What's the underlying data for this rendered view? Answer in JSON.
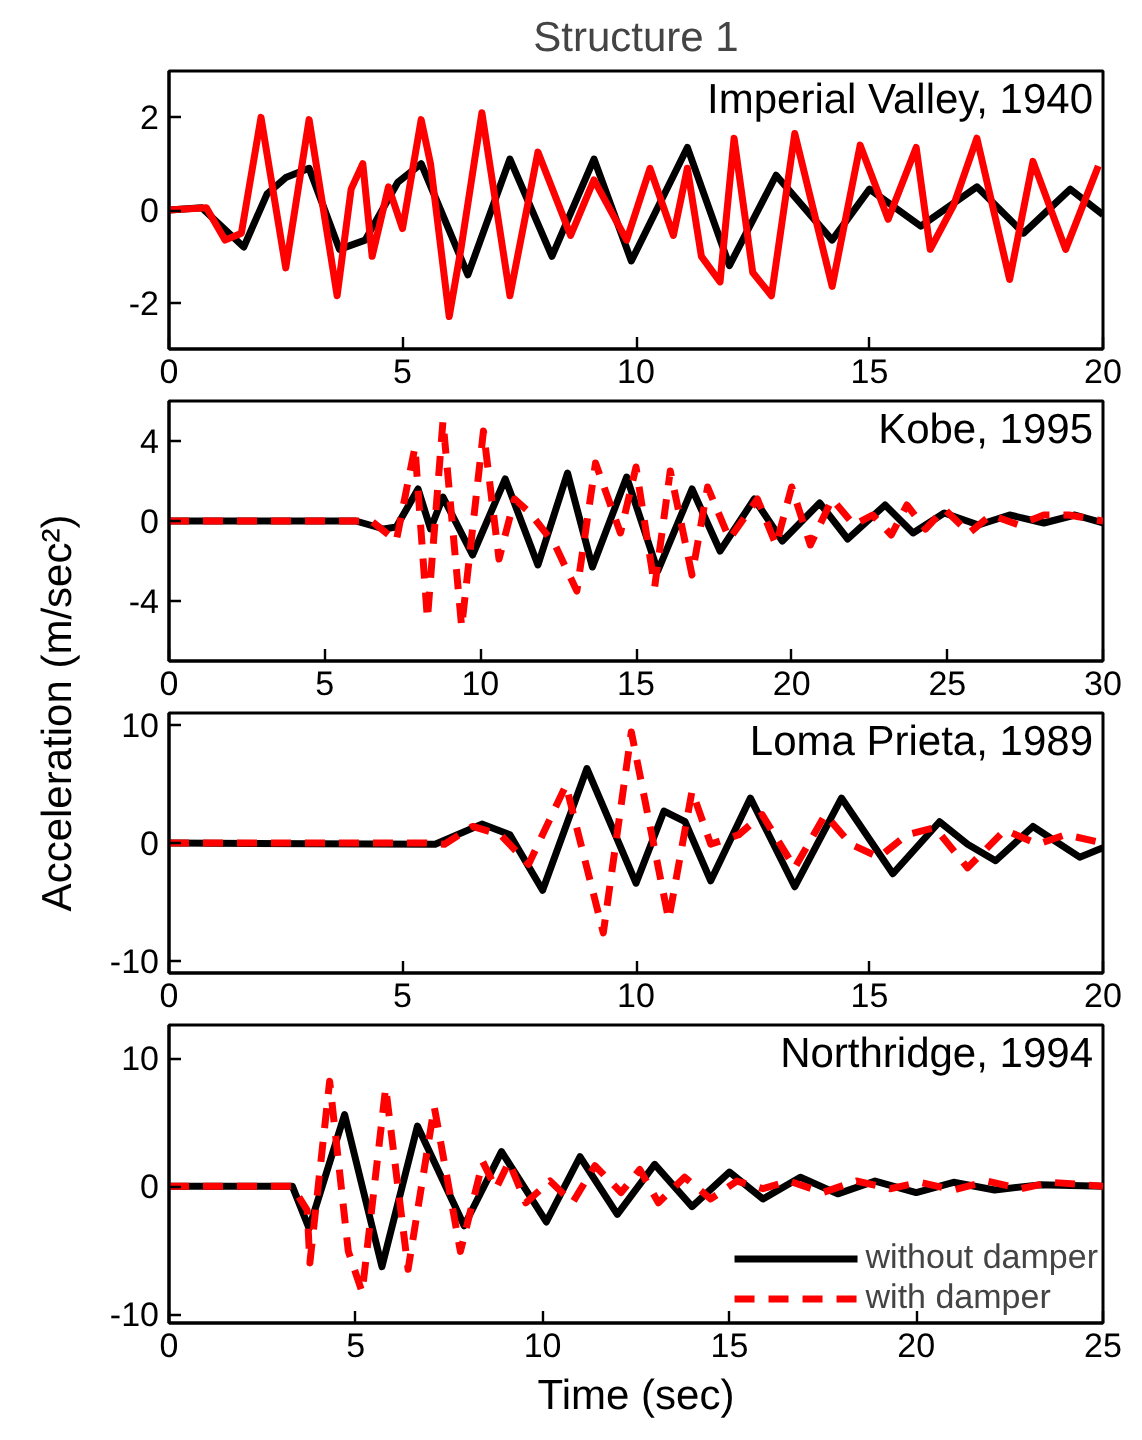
{
  "chart_data": [
    {
      "type": "line",
      "title": "Structure 1",
      "annotations": [
        "Imperial Valley, 1940"
      ],
      "xlim": [
        0,
        20
      ],
      "ylim": [
        -3,
        3
      ],
      "xticks": [
        0,
        5,
        10,
        15,
        20
      ],
      "yticks": [
        -2,
        0,
        2
      ],
      "series": [
        {
          "color": "#000000",
          "line_style": "solid",
          "x": [
            0,
            0.7,
            1.6,
            2.1,
            2.5,
            3.0,
            3.65,
            4.2,
            4.9,
            5.4,
            6.4,
            7.3,
            8.2,
            9.1,
            9.9,
            11.1,
            12,
            13,
            14.2,
            15,
            16.1,
            17.3,
            18.3,
            19.3,
            20
          ],
          "values": [
            0,
            0.05,
            -0.8,
            0.35,
            0.7,
            0.9,
            -0.85,
            -0.65,
            0.6,
            1.0,
            -1.4,
            1.1,
            -1.0,
            1.1,
            -1.1,
            1.35,
            -1.2,
            0.75,
            -0.65,
            0.45,
            -0.35,
            0.5,
            -0.5,
            0.45,
            -0.1
          ]
        },
        {
          "color": "#ff0000",
          "line_style": "solid",
          "x": [
            0,
            0.8,
            1.2,
            1.55,
            1.97,
            2.5,
            3.0,
            3.6,
            3.9,
            4.15,
            4.35,
            4.7,
            5.0,
            5.4,
            5.6,
            6.0,
            6.25,
            6.7,
            7.3,
            7.9,
            8.6,
            9.1,
            9.8,
            10.3,
            10.8,
            11.1,
            11.4,
            11.8,
            12.1,
            12.5,
            12.9,
            13.4,
            14.2,
            14.8,
            15.4,
            16.0,
            16.3,
            16.8,
            17.3,
            18.0,
            18.5,
            19.2,
            19.9
          ],
          "values": [
            0,
            0.05,
            -0.65,
            -0.5,
            2.0,
            -1.25,
            1.95,
            -1.85,
            0.45,
            1.0,
            -1.0,
            0.5,
            -0.4,
            1.95,
            1.0,
            -2.3,
            -0.85,
            2.1,
            -1.85,
            1.25,
            -0.55,
            0.65,
            -0.65,
            0.9,
            -0.55,
            0.9,
            -1.0,
            -1.55,
            1.55,
            -1.35,
            -1.85,
            1.65,
            -1.65,
            1.4,
            -0.2,
            1.35,
            -0.85,
            0.1,
            1.55,
            -1.5,
            1.05,
            -0.85,
            0.95
          ]
        }
      ]
    },
    {
      "type": "line",
      "ylabel": "Acceleration (m/sec²)",
      "annotations": [
        "Kobe, 1995"
      ],
      "xlim": [
        0,
        30
      ],
      "ylim": [
        -7,
        6
      ],
      "xticks": [
        0,
        5,
        10,
        15,
        20,
        25,
        30
      ],
      "yticks": [
        -4,
        0,
        4
      ],
      "series": [
        {
          "color": "#000000",
          "line_style": "solid",
          "x": [
            0,
            6,
            6.9,
            7.3,
            8.0,
            8.4,
            8.8,
            9.75,
            10.8,
            11.85,
            12.8,
            13.6,
            14.7,
            15.7,
            16.8,
            17.7,
            18.8,
            19.7,
            20.9,
            21.8,
            23.0,
            23.9,
            24.9,
            26,
            27,
            28.1,
            29.1,
            30
          ],
          "values": [
            0,
            0,
            -0.4,
            -0.3,
            1.6,
            -0.4,
            1.2,
            -1.7,
            2.1,
            -2.2,
            2.4,
            -2.3,
            2.2,
            -2.5,
            1.6,
            -1.5,
            1.1,
            -1.0,
            0.9,
            -0.9,
            0.8,
            -0.6,
            0.4,
            -0.2,
            0.3,
            -0.1,
            0.3,
            -0.1
          ]
        },
        {
          "color": "#ff0000",
          "line_style": "dashed",
          "x": [
            0,
            6.5,
            7.3,
            7.9,
            8.3,
            8.8,
            9.4,
            10.1,
            10.6,
            11.1,
            11.6,
            12.4,
            13.1,
            13.7,
            14.5,
            15.0,
            15.6,
            16.1,
            16.8,
            17.3,
            18.0,
            18.9,
            19.5,
            20.0,
            20.6,
            21.3,
            22.0,
            22.6,
            23.2,
            23.7,
            24.3,
            24.9,
            25.7,
            26.4,
            27.3,
            28.1,
            28.9,
            30
          ],
          "values": [
            0,
            0,
            -1.0,
            3.7,
            -4.9,
            5.0,
            -5.3,
            4.5,
            -1.9,
            1.1,
            0.4,
            -1.2,
            -3.5,
            2.9,
            -0.6,
            2.7,
            -3.3,
            2.5,
            -2.7,
            1.7,
            -0.9,
            1.1,
            -1.2,
            1.7,
            -1.2,
            1.1,
            -0.2,
            0.3,
            -0.7,
            0.8,
            -0.4,
            0.6,
            -0.6,
            0.3,
            -0.2,
            0.3,
            0.3,
            0
          ]
        }
      ]
    },
    {
      "type": "line",
      "annotations": [
        "Loma Prieta, 1989"
      ],
      "xlim": [
        0,
        20
      ],
      "ylim": [
        -11,
        11
      ],
      "xticks": [
        0,
        5,
        10,
        15,
        20
      ],
      "yticks": [
        -10,
        0,
        10
      ],
      "series": [
        {
          "color": "#000000",
          "line_style": "solid",
          "x": [
            0,
            5.7,
            6.7,
            7.3,
            8.0,
            8.95,
            10.0,
            10.6,
            11.05,
            11.6,
            12.45,
            13.4,
            14.4,
            15.5,
            16.5,
            17.1,
            17.7,
            18.5,
            19.5,
            20
          ],
          "values": [
            0,
            -0.1,
            1.6,
            0.7,
            -4.0,
            6.3,
            -3.4,
            2.7,
            1.8,
            -3.2,
            3.8,
            -3.7,
            3.8,
            -2.6,
            1.8,
            -0.1,
            -1.5,
            1.4,
            -1.2,
            -0.4
          ]
        },
        {
          "color": "#ff0000",
          "line_style": "dashed",
          "x": [
            0,
            5.5,
            5.9,
            6.5,
            7.1,
            7.7,
            8.5,
            9.3,
            9.9,
            10.7,
            11.2,
            11.6,
            12.2,
            12.7,
            13.4,
            14.05,
            14.6,
            15.2,
            15.8,
            16.4,
            17.1,
            17.9,
            18.6,
            19.2,
            20
          ],
          "values": [
            0,
            0,
            -0.1,
            1.4,
            0.7,
            -1.8,
            4.9,
            -7.6,
            9.4,
            -6.5,
            4.4,
            -0.1,
            0.7,
            2.4,
            -2.1,
            2.4,
            -0.1,
            -1.2,
            0.7,
            1.3,
            -2.1,
            1.1,
            -0.1,
            0.7,
            0
          ]
        }
      ]
    },
    {
      "type": "line",
      "xlabel": "Time (sec)",
      "annotations": [
        "Northridge, 1994"
      ],
      "legend": "bottom right",
      "xlim": [
        0,
        25
      ],
      "ylim": [
        -10.7,
        12.6
      ],
      "xticks": [
        0,
        5,
        10,
        15,
        20,
        25
      ],
      "yticks": [
        -10,
        0,
        10
      ],
      "series": [
        {
          "name": "without damper",
          "color": "#000000",
          "line_style": "solid",
          "x": [
            0,
            3.3,
            3.75,
            4.7,
            5.7,
            6.65,
            7.9,
            8.9,
            10.1,
            11.0,
            12.0,
            13.0,
            14.0,
            15.0,
            15.9,
            16.9,
            17.9,
            18.9,
            20.0,
            21,
            22.1,
            23.3,
            25
          ],
          "values": [
            0,
            0,
            -3.3,
            5.6,
            -6.3,
            4.7,
            -3.1,
            2.7,
            -2.8,
            2.3,
            -2.2,
            1.7,
            -1.6,
            1.1,
            -1.0,
            0.7,
            -0.6,
            0.4,
            -0.5,
            0.3,
            -0.3,
            0.1,
            0
          ]
        },
        {
          "name": "with damper",
          "color": "#ff0000",
          "line_style": "dashed",
          "x": [
            0,
            3.3,
            3.7,
            3.77,
            4.3,
            4.8,
            5.17,
            5.8,
            6.4,
            7.1,
            7.8,
            8.4,
            8.75,
            9.1,
            9.55,
            10.2,
            10.8,
            11.4,
            12.1,
            12.6,
            13.1,
            13.8,
            14.5,
            15.2,
            15.9,
            16.6,
            17.5,
            18.4,
            19.3,
            20.1,
            21,
            21.9,
            22.8,
            23.6,
            25
          ],
          "values": [
            0,
            0,
            -1.9,
            -6.0,
            8.2,
            -5.1,
            -8.3,
            7.7,
            -6.5,
            6.2,
            -5.1,
            1.9,
            -0.2,
            1.9,
            -1.3,
            0.4,
            -1.3,
            1.6,
            -0.5,
            1.3,
            -1.3,
            0.7,
            -1.0,
            0.4,
            -0.2,
            0.4,
            -0.5,
            0.4,
            -0.2,
            0.3,
            -0.3,
            0.4,
            -0.2,
            0.3,
            0
          ]
        }
      ]
    }
  ]
}
